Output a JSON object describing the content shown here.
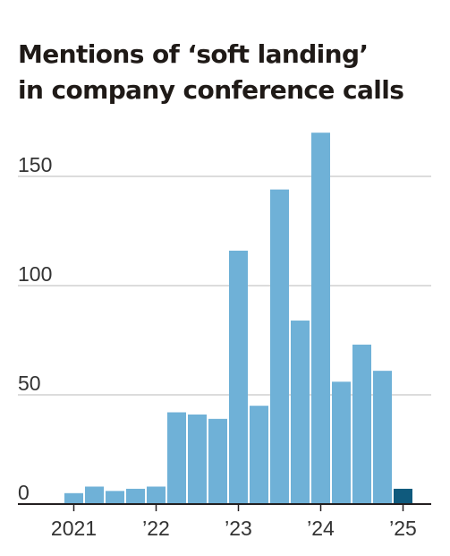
{
  "chart_data": {
    "type": "bar",
    "title": "Mentions of ‘soft landing’ in company conference calls",
    "title_lines": [
      "Mentions of ‘soft landing’",
      "in company conference calls"
    ],
    "xlabel": "",
    "ylabel": "",
    "ylim": [
      0,
      170
    ],
    "y_ticks": [
      {
        "value": 150,
        "label": "150"
      },
      {
        "value": 100,
        "label": "100"
      },
      {
        "value": 50,
        "label": "50"
      },
      {
        "value": 0,
        "label": "0"
      }
    ],
    "x_ticks": [
      {
        "bar_index": 0,
        "label": "2021"
      },
      {
        "bar_index": 4,
        "label": "’22"
      },
      {
        "bar_index": 8,
        "label": "’23"
      },
      {
        "bar_index": 12,
        "label": "’24"
      },
      {
        "bar_index": 16,
        "label": "’25"
      }
    ],
    "grid": true,
    "values": [
      5,
      8,
      6,
      7,
      8,
      42,
      41,
      39,
      116,
      45,
      144,
      84,
      170,
      56,
      73,
      61,
      7
    ],
    "highlight_index": 16,
    "colors": {
      "bar": "#6fb1d7",
      "highlight": "#0f5a7d",
      "grid": "#c6c6c6",
      "baseline": "#231f20",
      "text": "#333333"
    }
  }
}
